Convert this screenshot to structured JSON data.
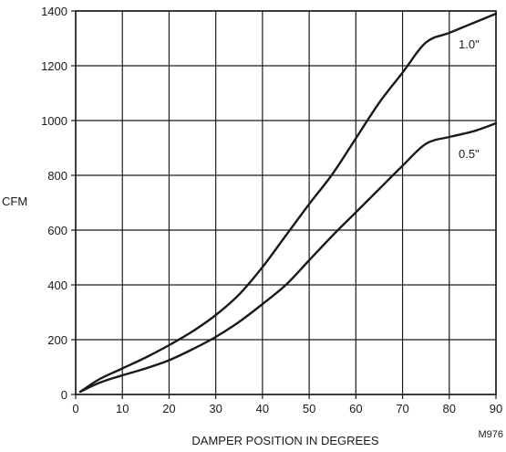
{
  "chart_data": {
    "type": "line",
    "title": "",
    "xlabel": "DAMPER POSITION IN DEGREES",
    "ylabel": "CFM",
    "xlim": [
      0,
      90
    ],
    "ylim": [
      0,
      1400
    ],
    "x_ticks": [
      "0",
      "10",
      "20",
      "30",
      "40",
      "50",
      "60",
      "70",
      "80",
      "90"
    ],
    "y_ticks": [
      "0",
      "200",
      "400",
      "600",
      "800",
      "1000",
      "1200",
      "1400"
    ],
    "grid": true,
    "series": [
      {
        "name": "1.0\"",
        "x": [
          1,
          5,
          10,
          15,
          20,
          25,
          30,
          35,
          40,
          45,
          50,
          55,
          60,
          65,
          70,
          75,
          80,
          85,
          90
        ],
        "y": [
          10,
          55,
          95,
          135,
          180,
          230,
          290,
          365,
          465,
          580,
          695,
          805,
          935,
          1065,
          1175,
          1285,
          1320,
          1355,
          1390
        ]
      },
      {
        "name": "0.5\"",
        "x": [
          1,
          5,
          10,
          15,
          20,
          25,
          30,
          35,
          40,
          45,
          50,
          55,
          60,
          65,
          70,
          75,
          80,
          85,
          90
        ],
        "y": [
          10,
          42,
          70,
          95,
          125,
          165,
          210,
          265,
          330,
          400,
          490,
          580,
          665,
          750,
          835,
          915,
          940,
          960,
          990
        ]
      }
    ],
    "figure_code": "M976"
  }
}
